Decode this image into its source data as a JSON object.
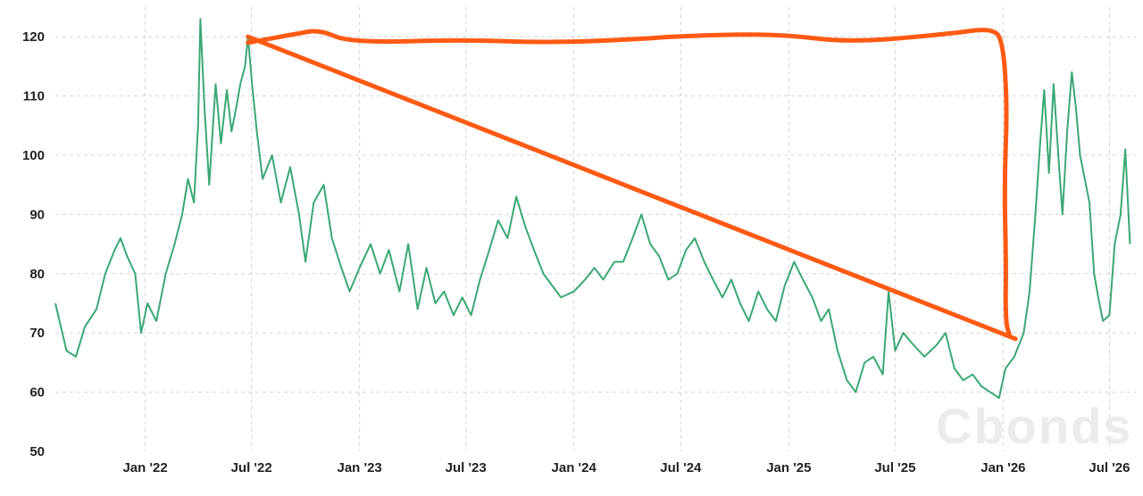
{
  "chart_data": {
    "type": "line",
    "title": "",
    "xlabel": "",
    "ylabel": "",
    "ylim": [
      50,
      125
    ],
    "xlim": [
      "2021-08-01",
      "2026-08-15"
    ],
    "yticks": [
      50,
      60,
      70,
      80,
      90,
      100,
      110,
      120
    ],
    "xticks": [
      {
        "date": "2022-01-01",
        "label": "Jan '22"
      },
      {
        "date": "2022-07-01",
        "label": "Jul '22"
      },
      {
        "date": "2023-01-01",
        "label": "Jan '23"
      },
      {
        "date": "2023-07-01",
        "label": "Jul '23"
      },
      {
        "date": "2024-01-01",
        "label": "Jan '24"
      },
      {
        "date": "2024-07-01",
        "label": "Jul '24"
      },
      {
        "date": "2025-01-01",
        "label": "Jan '25"
      },
      {
        "date": "2025-07-01",
        "label": "Jul '25"
      },
      {
        "date": "2026-01-01",
        "label": "Jan '26"
      },
      {
        "date": "2026-07-01",
        "label": "Jul '26"
      }
    ],
    "grid": true,
    "series": [
      {
        "color": "#3aa874",
        "points": [
          [
            "2021-08-01",
            75
          ],
          [
            "2021-08-20",
            67
          ],
          [
            "2021-09-05",
            66
          ],
          [
            "2021-09-20",
            71
          ],
          [
            "2021-10-10",
            74
          ],
          [
            "2021-10-25",
            80
          ],
          [
            "2021-11-10",
            84
          ],
          [
            "2021-11-20",
            86
          ],
          [
            "2021-12-01",
            83
          ],
          [
            "2021-12-15",
            80
          ],
          [
            "2021-12-25",
            70
          ],
          [
            "2022-01-05",
            75
          ],
          [
            "2022-01-20",
            72
          ],
          [
            "2022-02-05",
            80
          ],
          [
            "2022-02-20",
            85
          ],
          [
            "2022-03-05",
            90
          ],
          [
            "2022-03-15",
            96
          ],
          [
            "2022-03-25",
            92
          ],
          [
            "2022-04-01",
            105
          ],
          [
            "2022-04-05",
            123
          ],
          [
            "2022-04-12",
            108
          ],
          [
            "2022-04-20",
            95
          ],
          [
            "2022-05-01",
            112
          ],
          [
            "2022-05-10",
            102
          ],
          [
            "2022-05-20",
            111
          ],
          [
            "2022-05-28",
            104
          ],
          [
            "2022-06-05",
            108
          ],
          [
            "2022-06-12",
            112
          ],
          [
            "2022-06-20",
            115
          ],
          [
            "2022-06-25",
            120
          ],
          [
            "2022-07-02",
            112
          ],
          [
            "2022-07-10",
            104
          ],
          [
            "2022-07-20",
            96
          ],
          [
            "2022-08-05",
            100
          ],
          [
            "2022-08-20",
            92
          ],
          [
            "2022-09-05",
            98
          ],
          [
            "2022-09-20",
            90
          ],
          [
            "2022-10-01",
            82
          ],
          [
            "2022-10-15",
            92
          ],
          [
            "2022-11-01",
            95
          ],
          [
            "2022-11-15",
            86
          ],
          [
            "2022-12-01",
            81
          ],
          [
            "2022-12-15",
            77
          ],
          [
            "2023-01-01",
            81
          ],
          [
            "2023-01-20",
            85
          ],
          [
            "2023-02-05",
            80
          ],
          [
            "2023-02-20",
            84
          ],
          [
            "2023-03-10",
            77
          ],
          [
            "2023-03-25",
            85
          ],
          [
            "2023-04-10",
            74
          ],
          [
            "2023-04-25",
            81
          ],
          [
            "2023-05-10",
            75
          ],
          [
            "2023-05-25",
            77
          ],
          [
            "2023-06-10",
            73
          ],
          [
            "2023-06-25",
            76
          ],
          [
            "2023-07-10",
            73
          ],
          [
            "2023-07-25",
            79
          ],
          [
            "2023-08-10",
            84
          ],
          [
            "2023-08-25",
            89
          ],
          [
            "2023-09-10",
            86
          ],
          [
            "2023-09-25",
            93
          ],
          [
            "2023-10-10",
            88
          ],
          [
            "2023-10-25",
            84
          ],
          [
            "2023-11-10",
            80
          ],
          [
            "2023-11-25",
            78
          ],
          [
            "2023-12-10",
            76
          ],
          [
            "2024-01-01",
            77
          ],
          [
            "2024-01-20",
            79
          ],
          [
            "2024-02-05",
            81
          ],
          [
            "2024-02-20",
            79
          ],
          [
            "2024-03-10",
            82
          ],
          [
            "2024-03-25",
            82
          ],
          [
            "2024-04-10",
            86
          ],
          [
            "2024-04-25",
            90
          ],
          [
            "2024-05-10",
            85
          ],
          [
            "2024-05-25",
            83
          ],
          [
            "2024-06-10",
            79
          ],
          [
            "2024-06-25",
            80
          ],
          [
            "2024-07-10",
            84
          ],
          [
            "2024-07-25",
            86
          ],
          [
            "2024-08-10",
            82
          ],
          [
            "2024-08-25",
            79
          ],
          [
            "2024-09-10",
            76
          ],
          [
            "2024-09-25",
            79
          ],
          [
            "2024-10-10",
            75
          ],
          [
            "2024-10-25",
            72
          ],
          [
            "2024-11-10",
            77
          ],
          [
            "2024-11-25",
            74
          ],
          [
            "2024-12-10",
            72
          ],
          [
            "2024-12-25",
            78
          ],
          [
            "2025-01-10",
            82
          ],
          [
            "2025-01-25",
            79
          ],
          [
            "2025-02-10",
            76
          ],
          [
            "2025-02-25",
            72
          ],
          [
            "2025-03-10",
            74
          ],
          [
            "2025-03-25",
            67
          ],
          [
            "2025-04-10",
            62
          ],
          [
            "2025-04-25",
            60
          ],
          [
            "2025-05-10",
            65
          ],
          [
            "2025-05-25",
            66
          ],
          [
            "2025-06-10",
            63
          ],
          [
            "2025-06-20",
            77
          ],
          [
            "2025-07-01",
            67
          ],
          [
            "2025-07-15",
            70
          ],
          [
            "2025-08-01",
            68
          ],
          [
            "2025-08-20",
            66
          ],
          [
            "2025-09-10",
            68
          ],
          [
            "2025-09-25",
            70
          ],
          [
            "2025-10-10",
            64
          ],
          [
            "2025-10-25",
            62
          ],
          [
            "2025-11-10",
            63
          ],
          [
            "2025-11-25",
            61
          ],
          [
            "2025-12-10",
            60
          ],
          [
            "2025-12-25",
            59
          ],
          [
            "2026-01-05",
            64
          ],
          [
            "2026-01-20",
            66
          ],
          [
            "2026-02-05",
            70
          ],
          [
            "2026-02-15",
            77
          ],
          [
            "2026-02-25",
            90
          ],
          [
            "2026-03-05",
            102
          ],
          [
            "2026-03-12",
            111
          ],
          [
            "2026-03-20",
            97
          ],
          [
            "2026-03-28",
            112
          ],
          [
            "2026-04-05",
            100
          ],
          [
            "2026-04-12",
            90
          ],
          [
            "2026-04-20",
            104
          ],
          [
            "2026-04-28",
            114
          ],
          [
            "2026-05-05",
            108
          ],
          [
            "2026-05-12",
            100
          ],
          [
            "2026-05-20",
            96
          ],
          [
            "2026-05-28",
            92
          ],
          [
            "2026-06-05",
            80
          ],
          [
            "2026-06-12",
            76
          ],
          [
            "2026-06-20",
            72
          ],
          [
            "2026-07-01",
            73
          ],
          [
            "2026-07-10",
            85
          ],
          [
            "2026-07-20",
            90
          ],
          [
            "2026-07-28",
            101
          ],
          [
            "2026-08-05",
            85
          ]
        ]
      }
    ],
    "annotations": [
      {
        "type": "hand-drawn-line",
        "color": "#ff5a14",
        "points": [
          [
            "2022-06-25",
            120
          ],
          [
            "2026-01-22",
            69
          ]
        ]
      },
      {
        "type": "hand-drawn-bracket",
        "color": "#ff5a14",
        "points": [
          [
            "2022-06-25",
            119
          ],
          [
            "2022-09-15",
            120.5
          ],
          [
            "2022-10-25",
            121.2
          ],
          [
            "2022-12-15",
            119
          ],
          [
            "2023-07-01",
            119.5
          ],
          [
            "2023-11-15",
            119
          ],
          [
            "2024-04-01",
            119.5
          ],
          [
            "2024-07-15",
            120.2
          ],
          [
            "2024-12-15",
            120.5
          ],
          [
            "2025-04-15",
            119
          ],
          [
            "2025-10-01",
            120.5
          ],
          [
            "2025-12-15",
            121.5
          ],
          [
            "2026-01-01",
            119
          ],
          [
            "2026-01-08",
            108
          ],
          [
            "2026-01-03",
            95
          ],
          [
            "2026-01-06",
            82
          ],
          [
            "2026-01-05",
            72
          ],
          [
            "2026-01-12",
            69.5
          ]
        ]
      }
    ]
  },
  "watermark": "Cbonds"
}
